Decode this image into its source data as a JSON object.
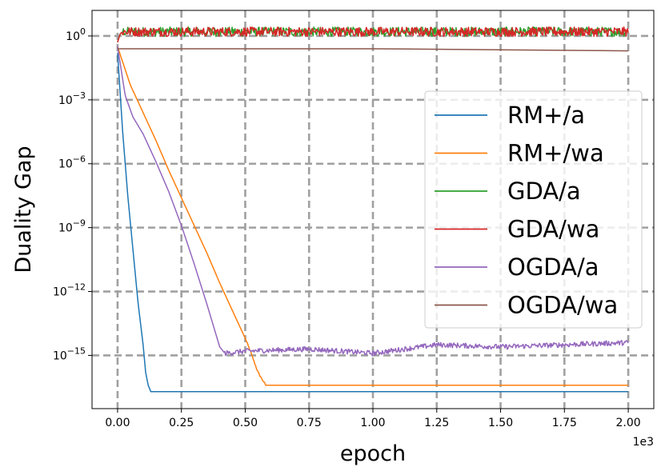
{
  "chart_data": {
    "type": "line",
    "title": "",
    "xlabel": "epoch",
    "ylabel": "Duality Gap",
    "x_scale_label": "1e3",
    "xlim": [
      -0.1,
      2.1
    ],
    "yscale": "log",
    "ylim_exp": [
      -17.5,
      1.2
    ],
    "x_ticks": [
      0.0,
      0.25,
      0.5,
      0.75,
      1.0,
      1.25,
      1.5,
      1.75,
      2.0
    ],
    "x_tick_labels": [
      "0.00",
      "0.25",
      "0.50",
      "0.75",
      "1.00",
      "1.25",
      "1.50",
      "1.75",
      "2.00"
    ],
    "y_ticks_exp": [
      0,
      -3,
      -6,
      -9,
      -12,
      -15
    ],
    "y_tick_labels": [
      {
        "base": "10",
        "exp": "0"
      },
      {
        "base": "10",
        "exp": "−3"
      },
      {
        "base": "10",
        "exp": "−6"
      },
      {
        "base": "10",
        "exp": "−9"
      },
      {
        "base": "10",
        "exp": "−12"
      },
      {
        "base": "10",
        "exp": "−15"
      }
    ],
    "grid": true,
    "legend_position": "right",
    "series": [
      {
        "name": "RM+/a",
        "color": "#1f77b4",
        "x": [
          0,
          0.02,
          0.04,
          0.06,
          0.08,
          0.1,
          0.11,
          0.12,
          0.13,
          2.0
        ],
        "log10_y": [
          -0.8,
          -4.5,
          -7.5,
          -10,
          -12.5,
          -14.5,
          -15.8,
          -16.4,
          -16.7,
          -16.7
        ]
      },
      {
        "name": "RM+/wa",
        "color": "#ff7f0e",
        "x": [
          0,
          0.05,
          0.1,
          0.15,
          0.2,
          0.25,
          0.3,
          0.35,
          0.4,
          0.45,
          0.5,
          0.52,
          0.55,
          0.58,
          0.6,
          2.0
        ],
        "log10_y": [
          -0.5,
          -2.3,
          -3.6,
          -4.9,
          -6.3,
          -7.6,
          -8.9,
          -10.2,
          -11.6,
          -12.9,
          -14.2,
          -14.8,
          -15.8,
          -16.4,
          -16.4,
          -16.4
        ]
      },
      {
        "name": "GDA/a",
        "color": "#2ca02c",
        "x": [
          0,
          0.01,
          0.02,
          2.0
        ],
        "log10_y": [
          -0.3,
          0.1,
          0.2,
          0.2
        ]
      },
      {
        "name": "GDA/wa",
        "color": "#d62728",
        "x": [
          0,
          0.01,
          0.02,
          2.0
        ],
        "log10_y": [
          -0.3,
          0.1,
          0.2,
          0.2
        ]
      },
      {
        "name": "OGDA/a",
        "color": "#9467bd",
        "x": [
          0,
          0.03,
          0.06,
          0.1,
          0.15,
          0.2,
          0.25,
          0.3,
          0.35,
          0.4,
          0.42,
          0.5,
          0.75,
          1.0,
          1.25,
          1.5,
          1.75,
          2.0
        ],
        "log10_y": [
          -0.5,
          -2.8,
          -3.8,
          -4.6,
          -5.9,
          -7.3,
          -8.9,
          -10.7,
          -12.6,
          -14.6,
          -14.9,
          -14.8,
          -14.7,
          -14.9,
          -14.5,
          -14.6,
          -14.5,
          -14.4
        ]
      },
      {
        "name": "OGDA/wa",
        "color": "#8c564b",
        "x": [
          0,
          0.02,
          1.0,
          2.0
        ],
        "log10_y": [
          -0.6,
          -0.6,
          -0.6,
          -0.7
        ]
      }
    ]
  }
}
